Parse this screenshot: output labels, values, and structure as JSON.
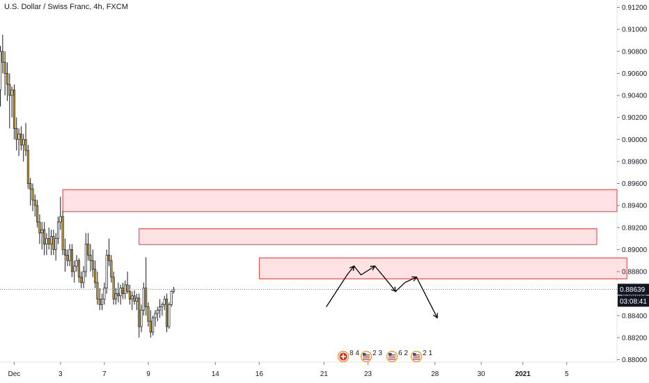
{
  "title": "U.S. Dollar / Swiss Franc, 4h, FXCM",
  "colors": {
    "up_candle": "#ffffff",
    "down_candle": "#d1a22c",
    "wick": "#131722",
    "zone_fill": "#ffd6d9",
    "zone_border": "#e23a3a",
    "price_line": "#787b86",
    "price_badge": "#131722",
    "axis_text": "#131722"
  },
  "price_label": "0.88639",
  "countdown_label": "03:08:41",
  "events": [
    {
      "icon": "swiss-flag-icon",
      "count": "8 4"
    },
    {
      "icon": "us-flag-icon",
      "count": "2 3"
    },
    {
      "icon": "us-flag-icon",
      "count": "6 2"
    },
    {
      "icon": "us-flag-icon",
      "count": "2 1"
    }
  ],
  "chart_data": {
    "type": "candlestick",
    "title": "U.S. Dollar / Swiss Franc, 4h, FXCM",
    "symbol": "USDCHF",
    "timeframe": "4h",
    "ylim": [
      0.8798,
      0.9128
    ],
    "y_ticks": [
      "0.91200",
      "0.91000",
      "0.90800",
      "0.90600",
      "0.90400",
      "0.90200",
      "0.90000",
      "0.89800",
      "0.89600",
      "0.89400",
      "0.89200",
      "0.89000",
      "0.88800",
      "0.88600",
      "0.88400",
      "0.88200",
      "0.88000"
    ],
    "x_ticks": [
      {
        "label": "Dec",
        "bar": 6
      },
      {
        "label": "3",
        "bar": 26
      },
      {
        "label": "7",
        "bar": 45
      },
      {
        "label": "9",
        "bar": 64
      },
      {
        "label": "14",
        "bar": 93
      },
      {
        "label": "16",
        "bar": 112
      },
      {
        "label": "21",
        "bar": 140
      },
      {
        "label": "23",
        "bar": 159
      },
      {
        "label": "28",
        "bar": 188
      },
      {
        "label": "30",
        "bar": 208
      },
      {
        "label": "2021",
        "bar": 226,
        "bold": true
      },
      {
        "label": "5",
        "bar": 245
      }
    ],
    "last_price": 0.88639,
    "candles": [
      [
        0.9045,
        0.9085,
        0.903,
        0.908
      ],
      [
        0.908,
        0.9095,
        0.906,
        0.907
      ],
      [
        0.907,
        0.908,
        0.904,
        0.906
      ],
      [
        0.906,
        0.907,
        0.9035,
        0.905
      ],
      [
        0.905,
        0.906,
        0.901,
        0.904
      ],
      [
        0.904,
        0.9048,
        0.902,
        0.9045
      ],
      [
        0.9045,
        0.905,
        0.9,
        0.901
      ],
      [
        0.901,
        0.902,
        0.899,
        0.9
      ],
      [
        0.9,
        0.901,
        0.8985,
        0.9005
      ],
      [
        0.9005,
        0.9012,
        0.899,
        0.8995
      ],
      [
        0.8995,
        0.9005,
        0.898,
        0.9
      ],
      [
        0.9,
        0.9015,
        0.8985,
        0.899
      ],
      [
        0.899,
        0.8995,
        0.8955,
        0.896
      ],
      [
        0.896,
        0.8965,
        0.894,
        0.8955
      ],
      [
        0.8955,
        0.896,
        0.8935,
        0.8945
      ],
      [
        0.8945,
        0.895,
        0.893,
        0.894
      ],
      [
        0.894,
        0.8945,
        0.892,
        0.8925
      ],
      [
        0.8925,
        0.8932,
        0.8905,
        0.8915
      ],
      [
        0.8915,
        0.8925,
        0.89,
        0.8918
      ],
      [
        0.8918,
        0.8925,
        0.8895,
        0.8905
      ],
      [
        0.8905,
        0.8915,
        0.8895,
        0.891
      ],
      [
        0.891,
        0.892,
        0.89,
        0.8905
      ],
      [
        0.8905,
        0.8918,
        0.8895,
        0.8912
      ],
      [
        0.8912,
        0.8918,
        0.8895,
        0.89
      ],
      [
        0.89,
        0.8915,
        0.889,
        0.891
      ],
      [
        0.891,
        0.893,
        0.8905,
        0.8925
      ],
      [
        0.8925,
        0.8948,
        0.8918,
        0.893
      ],
      [
        0.893,
        0.8935,
        0.8895,
        0.89
      ],
      [
        0.89,
        0.891,
        0.888,
        0.8895
      ],
      [
        0.8895,
        0.89,
        0.8885,
        0.889
      ],
      [
        0.889,
        0.8905,
        0.8885,
        0.89
      ],
      [
        0.89,
        0.8905,
        0.8875,
        0.888
      ],
      [
        0.888,
        0.889,
        0.887,
        0.8885
      ],
      [
        0.8885,
        0.8895,
        0.888,
        0.889
      ],
      [
        0.889,
        0.8892,
        0.887,
        0.8875
      ],
      [
        0.8875,
        0.888,
        0.8865,
        0.887
      ],
      [
        0.887,
        0.8885,
        0.8865,
        0.888
      ],
      [
        0.888,
        0.8915,
        0.8875,
        0.8905
      ],
      [
        0.8905,
        0.8915,
        0.889,
        0.8895
      ],
      [
        0.8895,
        0.8905,
        0.888,
        0.889
      ],
      [
        0.889,
        0.89,
        0.8875,
        0.8882
      ],
      [
        0.8882,
        0.889,
        0.8865,
        0.887
      ],
      [
        0.887,
        0.888,
        0.885,
        0.8855
      ],
      [
        0.8855,
        0.8865,
        0.8845,
        0.885
      ],
      [
        0.885,
        0.886,
        0.8845,
        0.8855
      ],
      [
        0.8855,
        0.887,
        0.885,
        0.8865
      ],
      [
        0.8865,
        0.89,
        0.886,
        0.8895
      ],
      [
        0.8895,
        0.891,
        0.8885,
        0.889
      ],
      [
        0.889,
        0.8895,
        0.887,
        0.8875
      ],
      [
        0.8875,
        0.888,
        0.885,
        0.8855
      ],
      [
        0.8855,
        0.8865,
        0.885,
        0.886
      ],
      [
        0.886,
        0.887,
        0.8852,
        0.8858
      ],
      [
        0.8858,
        0.8868,
        0.885,
        0.8865
      ],
      [
        0.8865,
        0.887,
        0.8855,
        0.886
      ],
      [
        0.886,
        0.8872,
        0.8855,
        0.8868
      ],
      [
        0.8868,
        0.888,
        0.886,
        0.8862
      ],
      [
        0.8862,
        0.8868,
        0.885,
        0.8855
      ],
      [
        0.8855,
        0.8862,
        0.8845,
        0.8858
      ],
      [
        0.8858,
        0.8863,
        0.885,
        0.8853
      ],
      [
        0.8853,
        0.886,
        0.8845,
        0.8856
      ],
      [
        0.8856,
        0.886,
        0.882,
        0.883
      ],
      [
        0.883,
        0.885,
        0.8825,
        0.8845
      ],
      [
        0.8845,
        0.887,
        0.884,
        0.8865
      ],
      [
        0.8865,
        0.8893,
        0.884,
        0.8848
      ],
      [
        0.8848,
        0.8852,
        0.883,
        0.8835
      ],
      [
        0.8835,
        0.8845,
        0.882,
        0.8825
      ],
      [
        0.8825,
        0.884,
        0.8822,
        0.8838
      ],
      [
        0.8838,
        0.8845,
        0.883,
        0.8842
      ],
      [
        0.8842,
        0.8848,
        0.8835,
        0.8845
      ],
      [
        0.8845,
        0.8855,
        0.8838,
        0.8848
      ],
      [
        0.8848,
        0.8852,
        0.884,
        0.885
      ],
      [
        0.885,
        0.8858,
        0.8845,
        0.8855
      ],
      [
        0.8855,
        0.886,
        0.8825,
        0.883
      ],
      [
        0.883,
        0.8852,
        0.8828,
        0.885
      ],
      [
        0.885,
        0.8863,
        0.8848,
        0.8862
      ],
      [
        0.8862,
        0.8866,
        0.886,
        0.8864
      ]
    ],
    "zones": [
      {
        "x0_bar": 27,
        "x1_bar": "edge",
        "y_top": 0.89545,
        "y_bottom": 0.89345
      },
      {
        "x0_bar": 60,
        "x1_bar": 258,
        "y_top": 0.8919,
        "y_bottom": 0.89045
      },
      {
        "x0_bar": 112,
        "x1_bar": 271,
        "y_top": 0.88925,
        "y_bottom": 0.88735
      }
    ],
    "projection_path": [
      [
        141,
        0.8848
      ],
      [
        150,
        0.8877
      ],
      [
        153,
        0.8885
      ],
      [
        156,
        0.8877
      ],
      [
        162,
        0.8885
      ],
      [
        166,
        0.8875
      ],
      [
        171,
        0.8862
      ],
      [
        175,
        0.887
      ],
      [
        180,
        0.8875
      ],
      [
        189,
        0.8838
      ]
    ]
  }
}
